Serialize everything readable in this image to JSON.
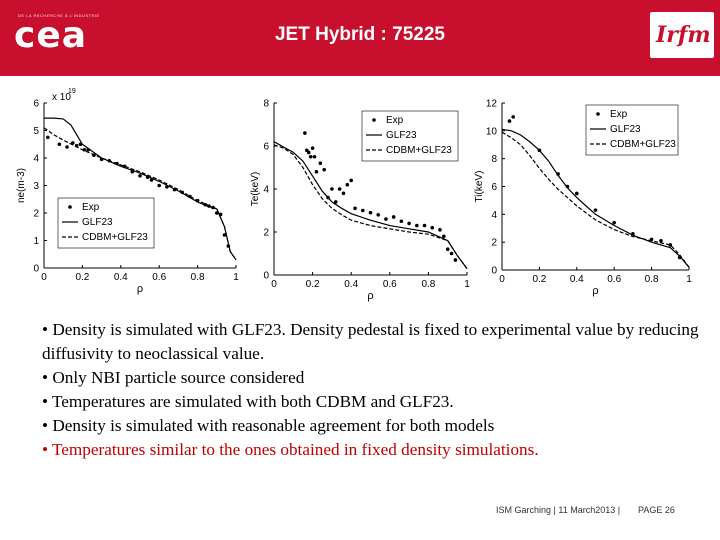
{
  "header": {
    "tagline": "DE LA RECHERCHE À L'INDUSTRIE",
    "logo": "cea",
    "title": "JET Hybrid : 75225",
    "right_logo": "Irfm",
    "colors": {
      "header_bg": "#c8102e",
      "title": "#ffffff"
    }
  },
  "chart_data": [
    {
      "type": "line",
      "title": "",
      "xlabel": "ρ",
      "ylabel": "ne(m-3)",
      "exponent_label": "x 10",
      "exponent_power": "19",
      "xlim": [
        0,
        1
      ],
      "ylim": [
        0,
        6
      ],
      "xticks": [
        "0",
        "0.2",
        "0.4",
        "0.6",
        "0.8",
        "1"
      ],
      "yticks": [
        "0",
        "1",
        "2",
        "3",
        "4",
        "5",
        "6"
      ],
      "legend_position": "bottom-left",
      "legend": [
        "Exp",
        "GLF23",
        "CDBM+GLF23"
      ],
      "series": [
        {
          "name": "GLF23",
          "style": "solid",
          "x": [
            0,
            0.05,
            0.1,
            0.14,
            0.2,
            0.3,
            0.4,
            0.5,
            0.6,
            0.7,
            0.8,
            0.85,
            0.9,
            0.94,
            0.97,
            1.0
          ],
          "y": [
            5.45,
            5.45,
            5.42,
            5.2,
            4.5,
            4.0,
            3.7,
            3.45,
            3.15,
            2.8,
            2.4,
            2.25,
            2.15,
            1.5,
            0.6,
            0.3
          ]
        },
        {
          "name": "CDBM+GLF23",
          "style": "dashed",
          "x": [
            0,
            0.05,
            0.1,
            0.2,
            0.3,
            0.4,
            0.5,
            0.6,
            0.7,
            0.8,
            0.85,
            0.9,
            0.94,
            0.97,
            1.0
          ],
          "y": [
            5.1,
            4.85,
            4.65,
            4.3,
            4.0,
            3.75,
            3.5,
            3.2,
            2.85,
            2.45,
            2.3,
            2.15,
            1.5,
            0.6,
            0.3
          ]
        },
        {
          "name": "Exp",
          "style": "marker",
          "x": [
            0.02,
            0.08,
            0.12,
            0.15,
            0.17,
            0.19,
            0.21,
            0.23,
            0.26,
            0.3,
            0.34,
            0.38,
            0.42,
            0.46,
            0.5,
            0.54,
            0.56,
            0.6,
            0.64,
            0.68,
            0.72,
            0.76,
            0.8,
            0.84,
            0.86,
            0.88,
            0.9,
            0.92,
            0.94,
            0.96
          ],
          "y": [
            4.75,
            4.5,
            4.4,
            4.55,
            4.45,
            4.5,
            4.3,
            4.3,
            4.1,
            3.95,
            3.9,
            3.8,
            3.7,
            3.5,
            3.35,
            3.3,
            3.2,
            3.0,
            2.95,
            2.85,
            2.75,
            2.6,
            2.45,
            2.3,
            2.25,
            2.2,
            2.0,
            1.95,
            1.2,
            0.8
          ]
        }
      ]
    },
    {
      "type": "line",
      "title": "",
      "xlabel": "ρ",
      "ylabel": "Te(keV)",
      "xlim": [
        0,
        1
      ],
      "ylim": [
        0,
        8
      ],
      "xticks": [
        "0",
        "0.2",
        "0.4",
        "0.6",
        "0.8",
        "1"
      ],
      "yticks": [
        "0",
        "2",
        "4",
        "6",
        "8"
      ],
      "legend_position": "top-right",
      "legend": [
        "Exp",
        "GLF23",
        "CDBM+GLF23"
      ],
      "series": [
        {
          "name": "GLF23",
          "style": "solid",
          "x": [
            0,
            0.05,
            0.1,
            0.15,
            0.2,
            0.25,
            0.3,
            0.35,
            0.4,
            0.5,
            0.6,
            0.7,
            0.8,
            0.9,
            0.95,
            1.0
          ],
          "y": [
            6.2,
            5.95,
            5.7,
            5.3,
            4.6,
            3.9,
            3.4,
            3.1,
            2.85,
            2.55,
            2.3,
            2.15,
            2.0,
            1.6,
            0.9,
            0.3
          ]
        },
        {
          "name": "CDBM+GLF23",
          "style": "dashed",
          "x": [
            0,
            0.05,
            0.1,
            0.15,
            0.2,
            0.25,
            0.3,
            0.35,
            0.4,
            0.5,
            0.6,
            0.7,
            0.8,
            0.9,
            0.95,
            1.0
          ],
          "y": [
            6.05,
            5.9,
            5.6,
            5.0,
            4.2,
            3.55,
            3.1,
            2.8,
            2.55,
            2.3,
            2.15,
            2.0,
            1.9,
            1.6,
            0.9,
            0.3
          ]
        },
        {
          "name": "Exp",
          "style": "marker",
          "x": [
            0.16,
            0.17,
            0.18,
            0.19,
            0.2,
            0.21,
            0.22,
            0.24,
            0.26,
            0.28,
            0.3,
            0.32,
            0.34,
            0.36,
            0.38,
            0.4,
            0.42,
            0.46,
            0.5,
            0.54,
            0.58,
            0.62,
            0.66,
            0.7,
            0.74,
            0.78,
            0.82,
            0.86,
            0.88,
            0.9,
            0.92,
            0.94
          ],
          "y": [
            6.6,
            5.8,
            5.7,
            5.5,
            5.9,
            5.5,
            4.8,
            5.2,
            4.9,
            3.6,
            4.0,
            3.4,
            4.0,
            3.8,
            4.2,
            4.4,
            3.1,
            3.0,
            2.9,
            2.8,
            2.6,
            2.7,
            2.5,
            2.4,
            2.3,
            2.3,
            2.2,
            2.1,
            1.8,
            1.2,
            1.0,
            0.7
          ]
        }
      ]
    },
    {
      "type": "line",
      "title": "",
      "xlabel": "ρ",
      "ylabel": "Ti(keV)",
      "xlim": [
        0,
        1
      ],
      "ylim": [
        0,
        12
      ],
      "xticks": [
        "0",
        "0.2",
        "0.4",
        "0.6",
        "0.8",
        "1"
      ],
      "yticks": [
        "0",
        "2",
        "4",
        "6",
        "8",
        "10",
        "12"
      ],
      "legend_position": "top-right",
      "legend": [
        "Exp",
        "GLF23",
        "CDBM+GLF23"
      ],
      "series": [
        {
          "name": "GLF23",
          "style": "solid",
          "x": [
            0,
            0.05,
            0.1,
            0.15,
            0.2,
            0.25,
            0.3,
            0.35,
            0.4,
            0.45,
            0.5,
            0.6,
            0.7,
            0.8,
            0.9,
            0.95,
            1.0
          ],
          "y": [
            10.1,
            10.0,
            9.7,
            9.2,
            8.6,
            7.8,
            6.8,
            5.9,
            5.2,
            4.6,
            4.0,
            3.2,
            2.5,
            2.0,
            1.6,
            1.0,
            0.2
          ]
        },
        {
          "name": "CDBM+GLF23",
          "style": "dashed",
          "x": [
            0,
            0.05,
            0.1,
            0.15,
            0.2,
            0.25,
            0.3,
            0.35,
            0.4,
            0.45,
            0.5,
            0.6,
            0.7,
            0.8,
            0.9,
            0.95,
            1.0
          ],
          "y": [
            9.9,
            9.5,
            9.0,
            8.2,
            7.3,
            6.5,
            5.8,
            5.2,
            4.6,
            4.1,
            3.6,
            2.9,
            2.4,
            2.1,
            1.8,
            1.1,
            0.2
          ]
        },
        {
          "name": "Exp",
          "style": "marker",
          "x": [
            0.04,
            0.06,
            0.2,
            0.3,
            0.35,
            0.4,
            0.5,
            0.6,
            0.7,
            0.8,
            0.85,
            0.9,
            0.95
          ],
          "y": [
            10.7,
            11.0,
            8.6,
            6.9,
            6.0,
            5.5,
            4.3,
            3.4,
            2.6,
            2.2,
            2.1,
            1.8,
            0.9
          ]
        }
      ]
    }
  ],
  "bullets": [
    {
      "text": "• Density is simulated with GLF23. Density pedestal is fixed to experimental value by reducing diffusivity to neoclassical value.",
      "highlight": false
    },
    {
      "text": "• Only NBI particle source considered",
      "highlight": false
    },
    {
      "text": "• Temperatures are simulated with both CDBM and GLF23.",
      "highlight": false
    },
    {
      "text": "• Density is simulated with reasonable agreement for both models",
      "highlight": false
    },
    {
      "text": "• Temperatures similar to the ones obtained in fixed density simulations.",
      "highlight": true
    }
  ],
  "footer": {
    "event": "ISM Garching | 11 March2013 |",
    "page": "PAGE 26"
  }
}
